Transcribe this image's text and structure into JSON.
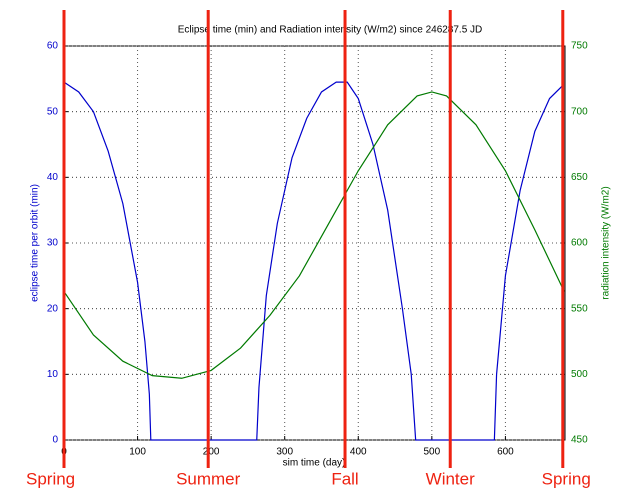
{
  "chart_data": {
    "type": "line",
    "title": "Eclipse time (min) and Radiation intensity (W/m2) since 246287.5 JD",
    "x_label": "sim time (day)",
    "y_label": "eclipse time per orbit (min)",
    "y2_label": "radiation intensity (W/m2)",
    "xlim": [
      0,
      681
    ],
    "xticks": [
      0,
      100,
      200,
      300,
      400,
      500,
      600
    ],
    "ylim": [
      0,
      60
    ],
    "yticks": [
      0,
      10,
      20,
      30,
      40,
      50,
      60
    ],
    "y2lim": [
      450,
      750
    ],
    "y2ticks": [
      450,
      500,
      550,
      600,
      650,
      700,
      750
    ],
    "grid": true,
    "series": [
      {
        "name": "eclipse time per orbit (min)",
        "color": "#0000cc",
        "x": [
          0,
          20,
          40,
          60,
          80,
          100,
          110,
          116,
          118,
          200,
          262,
          265,
          275,
          290,
          310,
          330,
          350,
          370,
          385,
          400,
          420,
          440,
          460,
          472,
          478,
          530,
          585,
          588,
          600,
          620,
          640,
          660,
          678
        ],
        "values": [
          54.5,
          53,
          50,
          44,
          36,
          24,
          15,
          7,
          0,
          0,
          0,
          8,
          22,
          33,
          43,
          49,
          53,
          54.5,
          54.5,
          52,
          45,
          35,
          20,
          10,
          0,
          0,
          0,
          10,
          25,
          38,
          47,
          52,
          54
        ]
      },
      {
        "name": "radiation intensity (W/m2)",
        "color": "#007a00",
        "axis": "y2",
        "x": [
          0,
          40,
          80,
          120,
          160,
          200,
          240,
          280,
          320,
          360,
          400,
          440,
          480,
          500,
          520,
          560,
          600,
          640,
          680
        ],
        "values": [
          563,
          530,
          510,
          499,
          497,
          503,
          520,
          545,
          575,
          615,
          655,
          690,
          712,
          715,
          712,
          690,
          655,
          610,
          563
        ]
      }
    ],
    "markers": {
      "color": "#ee2211",
      "x": [
        0,
        196,
        382,
        525,
        678
      ],
      "labels": [
        "Spring",
        "Summer",
        "Fall",
        "Winter",
        "Spring"
      ]
    }
  }
}
